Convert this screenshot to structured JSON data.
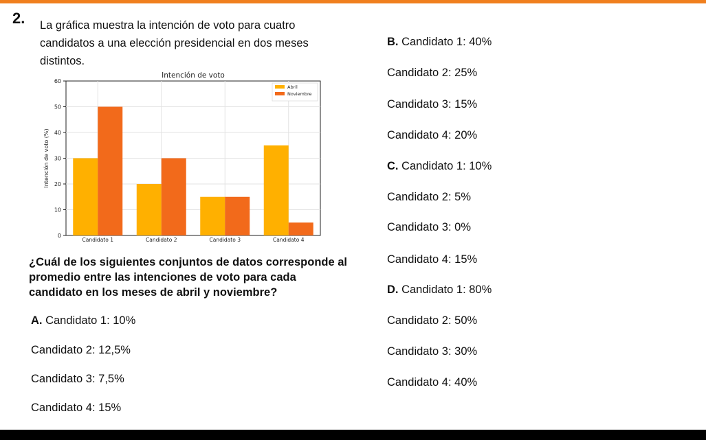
{
  "question": {
    "number": "2.",
    "intro": "La gráfica muestra la intención de voto para cuatro candidatos a una elección presidencial en dos meses distintos.",
    "prompt": "¿Cuál de los siguientes conjuntos de datos corresponde al promedio entre las intenciones de voto para cada candidato en los meses de abril y noviembre?"
  },
  "options": {
    "A": {
      "letter": "A.",
      "lines": [
        "Candidato 1: 10%",
        "Candidato 2: 12,5%",
        "Candidato 3: 7,5%",
        "Candidato 4: 15%"
      ]
    },
    "B": {
      "letter": "B.",
      "lines": [
        "Candidato 1: 40%",
        "Candidato 2: 25%",
        "Candidato 3: 15%",
        "Candidato 4: 20%"
      ]
    },
    "C": {
      "letter": "C.",
      "lines": [
        "Candidato 1: 10%",
        "Candidato 2: 5%",
        "Candidato 3: 0%",
        "Candidato 4: 15%"
      ]
    },
    "D": {
      "letter": "D.",
      "lines": [
        "Candidato 1: 80%",
        "Candidato 2: 50%",
        "Candidato 3: 30%",
        "Candidato 4: 40%"
      ]
    }
  },
  "colors": {
    "accent": "#f07f1e",
    "abril": "#ffb000",
    "noviembre": "#f26a1b"
  },
  "chart_data": {
    "type": "bar",
    "title": "Intención de voto",
    "xlabel": "",
    "ylabel": "Intención de voto (%)",
    "categories": [
      "Candidato 1",
      "Candidato 2",
      "Candidato 3",
      "Candidato 4"
    ],
    "series": [
      {
        "name": "Abril",
        "values": [
          30,
          20,
          15,
          35
        ]
      },
      {
        "name": "Noviembre",
        "values": [
          50,
          30,
          15,
          5
        ]
      }
    ],
    "ylim": [
      0,
      60
    ],
    "yticks": [
      "0",
      "10",
      "20",
      "30",
      "40",
      "50",
      "60"
    ],
    "grid": true,
    "legend": "top-right"
  }
}
